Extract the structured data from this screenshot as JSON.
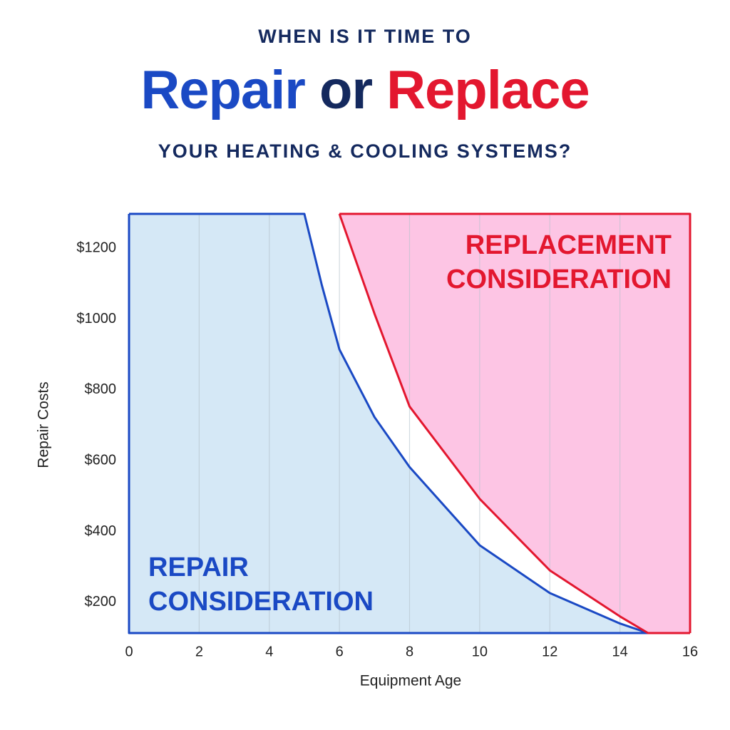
{
  "chart_data": {
    "type": "area",
    "title": "WHEN IS IT TIME TO",
    "headline": [
      "Repair",
      "or",
      "Replace"
    ],
    "headline_colors": [
      "#1a49c4",
      "#14295e",
      "#e3172f"
    ],
    "subtitle": "YOUR HEATING & COOLING SYSTEMS?",
    "x_label": "Equipment Age",
    "y_label": "Repair Costs",
    "xlim": [
      0,
      16
    ],
    "ylim": [
      113,
      1297
    ],
    "xticks": [
      0,
      2,
      4,
      6,
      8,
      10,
      12,
      14,
      16
    ],
    "yticks": [
      {
        "value": 200,
        "label": "$200"
      },
      {
        "value": 400,
        "label": "$400"
      },
      {
        "value": 600,
        "label": "$600"
      },
      {
        "value": 800,
        "label": "$800"
      },
      {
        "value": 1000,
        "label": "$1000"
      },
      {
        "value": 1200,
        "label": "$1200"
      }
    ],
    "grid": true,
    "series": [
      {
        "label": [
          "REPAIR",
          "CONSIDERATION"
        ],
        "color": "#1a49c4",
        "fill": "#d5e8f6",
        "fill_to": "bottom",
        "x": [
          0,
          5,
          5.5,
          6,
          7,
          8,
          10,
          12,
          14,
          14.8
        ],
        "values": [
          1297,
          1297,
          1095,
          914,
          723,
          582,
          361,
          226,
          140,
          113
        ]
      },
      {
        "label": [
          "REPLACEMENT",
          "CONSIDERATION"
        ],
        "color": "#e3172f",
        "fill": "#fdc5e4",
        "fill_to": "top",
        "x": [
          6,
          7,
          8,
          10,
          12,
          14,
          14.8,
          16
        ],
        "values": [
          1297,
          1015,
          753,
          492,
          290,
          160,
          113,
          113
        ]
      }
    ]
  }
}
